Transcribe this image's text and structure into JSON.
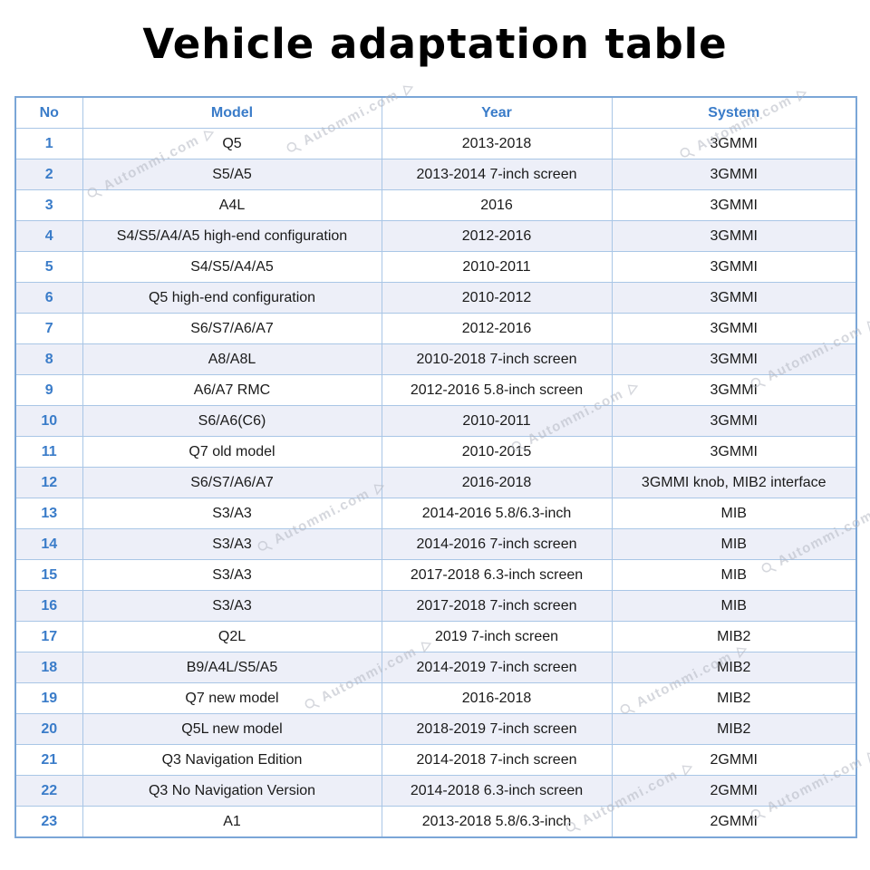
{
  "title": "Vehicle adaptation table",
  "watermark": {
    "text": "Autommi.com"
  },
  "colors": {
    "header_text": "#3a7cc9",
    "row_alt_background": "#edeff8",
    "cell_border": "#a9c6e6",
    "outer_border": "#7ba6d7",
    "watermark": "#b4b8c2"
  },
  "table": {
    "headers": [
      "No",
      "Model",
      "Year",
      "System"
    ],
    "rows": [
      [
        "1",
        "Q5",
        "2013-2018",
        "3GMMI"
      ],
      [
        "2",
        "S5/A5",
        "2013-2014 7-inch screen",
        "3GMMI"
      ],
      [
        "3",
        "A4L",
        "2016",
        "3GMMI"
      ],
      [
        "4",
        "S4/S5/A4/A5 high-end configuration",
        "2012-2016",
        "3GMMI"
      ],
      [
        "5",
        "S4/S5/A4/A5",
        "2010-2011",
        "3GMMI"
      ],
      [
        "6",
        "Q5 high-end configuration",
        "2010-2012",
        "3GMMI"
      ],
      [
        "7",
        "S6/S7/A6/A7",
        "2012-2016",
        "3GMMI"
      ],
      [
        "8",
        "A8/A8L",
        "2010-2018 7-inch screen",
        "3GMMI"
      ],
      [
        "9",
        "A6/A7 RMC",
        "2012-2016 5.8-inch screen",
        "3GMMI"
      ],
      [
        "10",
        "S6/A6(C6)",
        "2010-2011",
        "3GMMI"
      ],
      [
        "11",
        "Q7 old model",
        "2010-2015",
        "3GMMI"
      ],
      [
        "12",
        "S6/S7/A6/A7",
        "2016-2018",
        "3GMMI knob, MIB2 interface"
      ],
      [
        "13",
        "S3/A3",
        "2014-2016 5.8/6.3-inch",
        "MIB"
      ],
      [
        "14",
        "S3/A3",
        "2014-2016 7-inch screen",
        "MIB"
      ],
      [
        "15",
        "S3/A3",
        "2017-2018 6.3-inch screen",
        "MIB"
      ],
      [
        "16",
        "S3/A3",
        "2017-2018 7-inch screen",
        "MIB"
      ],
      [
        "17",
        "Q2L",
        "2019 7-inch screen",
        "MIB2"
      ],
      [
        "18",
        "B9/A4L/S5/A5",
        "2014-2019 7-inch screen",
        "MIB2"
      ],
      [
        "19",
        "Q7 new model",
        "2016-2018",
        "MIB2"
      ],
      [
        "20",
        "Q5L new model",
        "2018-2019 7-inch screen",
        "MIB2"
      ],
      [
        "21",
        "Q3 Navigation Edition",
        "2014-2018 7-inch screen",
        "2GMMI"
      ],
      [
        "22",
        "Q3 No Navigation Version",
        "2014-2018 6.3-inch screen",
        "2GMMI"
      ],
      [
        "23",
        "A1",
        "2013-2018 5.8/6.3-inch",
        "2GMMI"
      ]
    ]
  }
}
